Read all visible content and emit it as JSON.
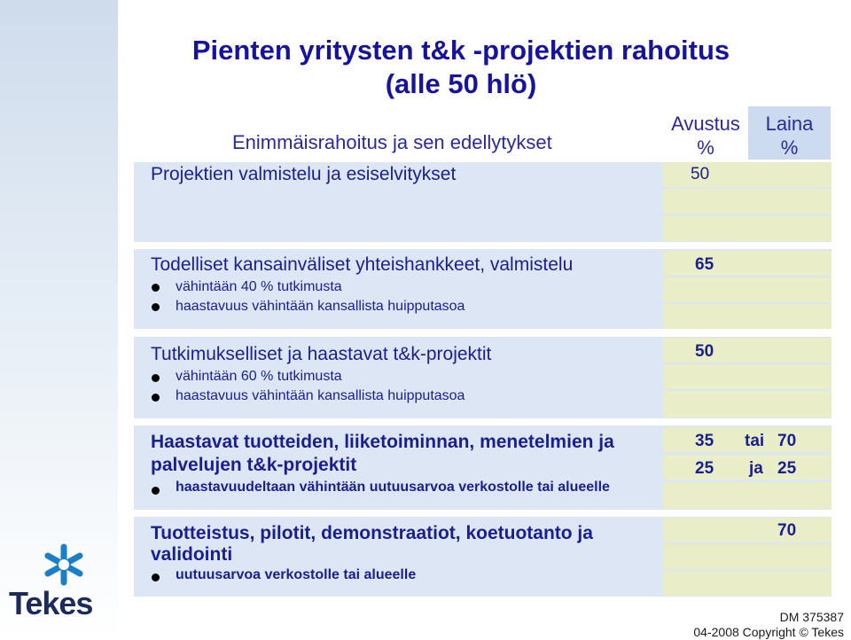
{
  "title": {
    "line1": "Pienten yritysten t&k -projektien rahoitus",
    "line2": "(alle 50 hlö)"
  },
  "subtitle": "Enimmäisrahoitus ja sen edellytykset",
  "columns": {
    "avustus": {
      "line1": "Avustus",
      "line2": "%"
    },
    "laina": {
      "line1": "Laina",
      "line2": "%"
    }
  },
  "rows": [
    {
      "heading": "Projektien valmistelu ja esiselvitykset",
      "avustus": "50"
    },
    {
      "heading": "Todelliset kansainväliset yhteishankkeet, valmistelu",
      "bullets": [
        "vähintään 40 % tutkimusta",
        "haastavuus vähintään kansallista huipputasoa"
      ],
      "avustus": "65"
    },
    {
      "heading": "Tutkimukselliset ja haastavat t&k-projektit",
      "bullets": [
        "vähintään 60 % tutkimusta",
        "haastavuus vähintään kansallista huipputasoa"
      ],
      "avustus": "50"
    },
    {
      "heading_line1": "Haastavat tuotteiden, liiketoiminnan, menetelmien ja",
      "heading_line2": "palvelujen t&k-projektit",
      "bullets": [
        "haastavuudeltaan vähintään uutuusarvoa verkostolle tai alueelle"
      ],
      "options": [
        {
          "avustus": "35",
          "conj": "tai",
          "laina": "70"
        },
        {
          "avustus": "25",
          "conj": "ja",
          "laina": "25"
        }
      ]
    },
    {
      "heading_line1": "Tuotteistus, pilotit, demonstraatiot, koetuotanto ja",
      "heading_line2": "validointi",
      "bullets": [
        "uutuusarvoa verkostolle tai alueelle"
      ],
      "laina": "70"
    }
  ],
  "logo": {
    "text": "Tekes"
  },
  "footer": {
    "doc_id": "DM 375387",
    "copyright": "04-2008 Copyright © Tekes"
  },
  "colors": {
    "title": "#17149b",
    "text": "#1a1f8f",
    "block": "#dde6f4",
    "cell": "#e9eec9",
    "header_laina": "#ccdbef",
    "logo": "#1a7fc4"
  }
}
